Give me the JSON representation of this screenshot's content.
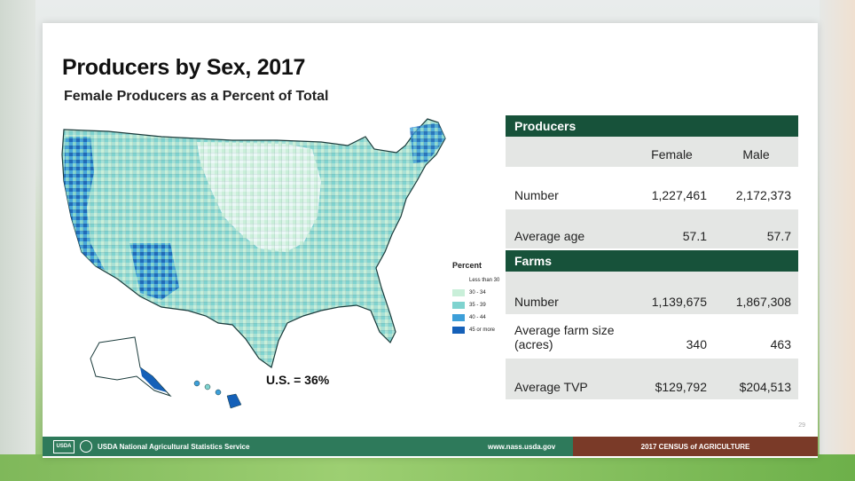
{
  "title": "Producers by Sex, 2017",
  "subtitle": "Female Producers as a Percent of Total",
  "us_note": "U.S. = 36%",
  "legend": {
    "title": "Percent",
    "items": [
      {
        "label": "Less than 30",
        "color": "#ffffff"
      },
      {
        "label": "30 - 34",
        "color": "#c9efd9"
      },
      {
        "label": "35 - 39",
        "color": "#7fd3cf"
      },
      {
        "label": "40 - 44",
        "color": "#3d9fd9"
      },
      {
        "label": "45 or more",
        "color": "#1560b8"
      }
    ]
  },
  "table": {
    "producers_header": "Producers",
    "col_female": "Female",
    "col_male": "Male",
    "producer_rows": [
      {
        "label": "Number",
        "female": "1,227,461",
        "male": "2,172,373"
      },
      {
        "label": "Average age",
        "female": "57.1",
        "male": "57.7"
      }
    ],
    "farms_header": "Farms",
    "farm_rows": [
      {
        "label": "Number",
        "female": "1,139,675",
        "male": "1,867,308"
      },
      {
        "label": "Average farm size (acres)",
        "female": "340",
        "male": "463"
      },
      {
        "label": "Average TVP",
        "female": "$129,792",
        "male": "$204,513"
      }
    ]
  },
  "page_number": "29",
  "footer": {
    "logo_text": "USDA",
    "agency": "USDA National Agricultural Statistics Service",
    "url": "www.nass.usda.gov",
    "census": "2017 CENSUS of AGRICULTURE"
  },
  "colors": {
    "table_header": "#17523a",
    "footer_green": "#2e7a5b",
    "footer_brown": "#7a3a28"
  }
}
